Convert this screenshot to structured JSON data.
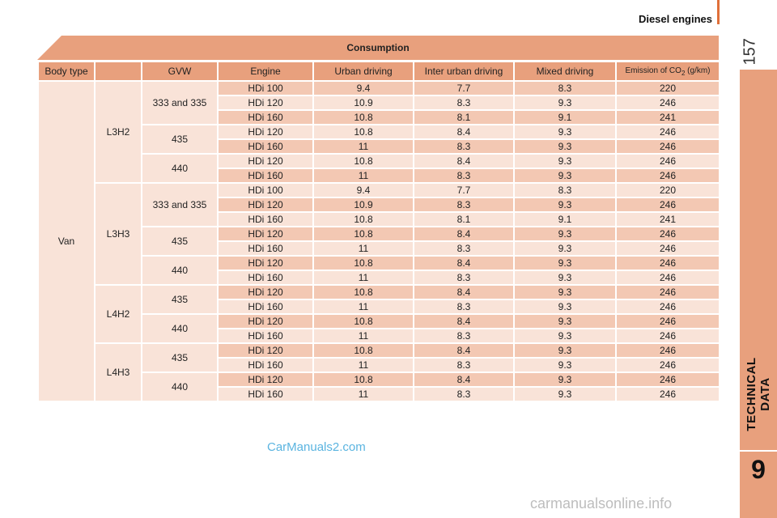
{
  "header": {
    "title": "Diesel engines",
    "page_number": "157"
  },
  "side": {
    "label": "TECHNICAL DATA",
    "chapter": "9"
  },
  "table": {
    "banner": "Consumption",
    "columns": [
      "Body type",
      "GVW",
      "Engine",
      "Urban driving",
      "Inter urban driving",
      "Mixed driving",
      "Emission of CO",
      "(g/km)"
    ],
    "body_type": "Van",
    "groups": [
      {
        "model": "L3H2",
        "gvw": [
          "333 and 335",
          "435",
          "440"
        ]
      },
      {
        "model": "L3H3",
        "gvw": [
          "333 and 335",
          "435",
          "440"
        ]
      },
      {
        "model": "L4H2",
        "gvw": [
          "435",
          "440"
        ]
      },
      {
        "model": "L4H3",
        "gvw": [
          "435",
          "440"
        ]
      }
    ],
    "rows": [
      [
        "HDi 100",
        "9.4",
        "7.7",
        "8.3",
        "220"
      ],
      [
        "HDi 120",
        "10.9",
        "8.3",
        "9.3",
        "246"
      ],
      [
        "HDi 160",
        "10.8",
        "8.1",
        "9.1",
        "241"
      ],
      [
        "HDi 120",
        "10.8",
        "8.4",
        "9.3",
        "246"
      ],
      [
        "HDi 160",
        "11",
        "8.3",
        "9.3",
        "246"
      ],
      [
        "HDi 120",
        "10.8",
        "8.4",
        "9.3",
        "246"
      ],
      [
        "HDi 160",
        "11",
        "8.3",
        "9.3",
        "246"
      ],
      [
        "HDi 100",
        "9.4",
        "7.7",
        "8.3",
        "220"
      ],
      [
        "HDi 120",
        "10.9",
        "8.3",
        "9.3",
        "246"
      ],
      [
        "HDi 160",
        "10.8",
        "8.1",
        "9.1",
        "241"
      ],
      [
        "HDi 120",
        "10.8",
        "8.4",
        "9.3",
        "246"
      ],
      [
        "HDi 160",
        "11",
        "8.3",
        "9.3",
        "246"
      ],
      [
        "HDi 120",
        "10.8",
        "8.4",
        "9.3",
        "246"
      ],
      [
        "HDi 160",
        "11",
        "8.3",
        "9.3",
        "246"
      ],
      [
        "HDi 120",
        "10.8",
        "8.4",
        "9.3",
        "246"
      ],
      [
        "HDi 160",
        "11",
        "8.3",
        "9.3",
        "246"
      ],
      [
        "HDi 120",
        "10.8",
        "8.4",
        "9.3",
        "246"
      ],
      [
        "HDi 160",
        "11",
        "8.3",
        "9.3",
        "246"
      ],
      [
        "HDi 120",
        "10.8",
        "8.4",
        "9.3",
        "246"
      ],
      [
        "HDi 160",
        "11",
        "8.3",
        "9.3",
        "246"
      ],
      [
        "HDi 120",
        "10.8",
        "8.4",
        "9.3",
        "246"
      ],
      [
        "HDi 160",
        "11",
        "8.3",
        "9.3",
        "246"
      ]
    ]
  },
  "watermarks": {
    "site": "CarManuals2.com",
    "footer": "carmanualsonline.info"
  },
  "colors": {
    "accent": "#e8a07d",
    "row_dark": "#f3c8b3",
    "row_light": "#f9e3d8"
  }
}
